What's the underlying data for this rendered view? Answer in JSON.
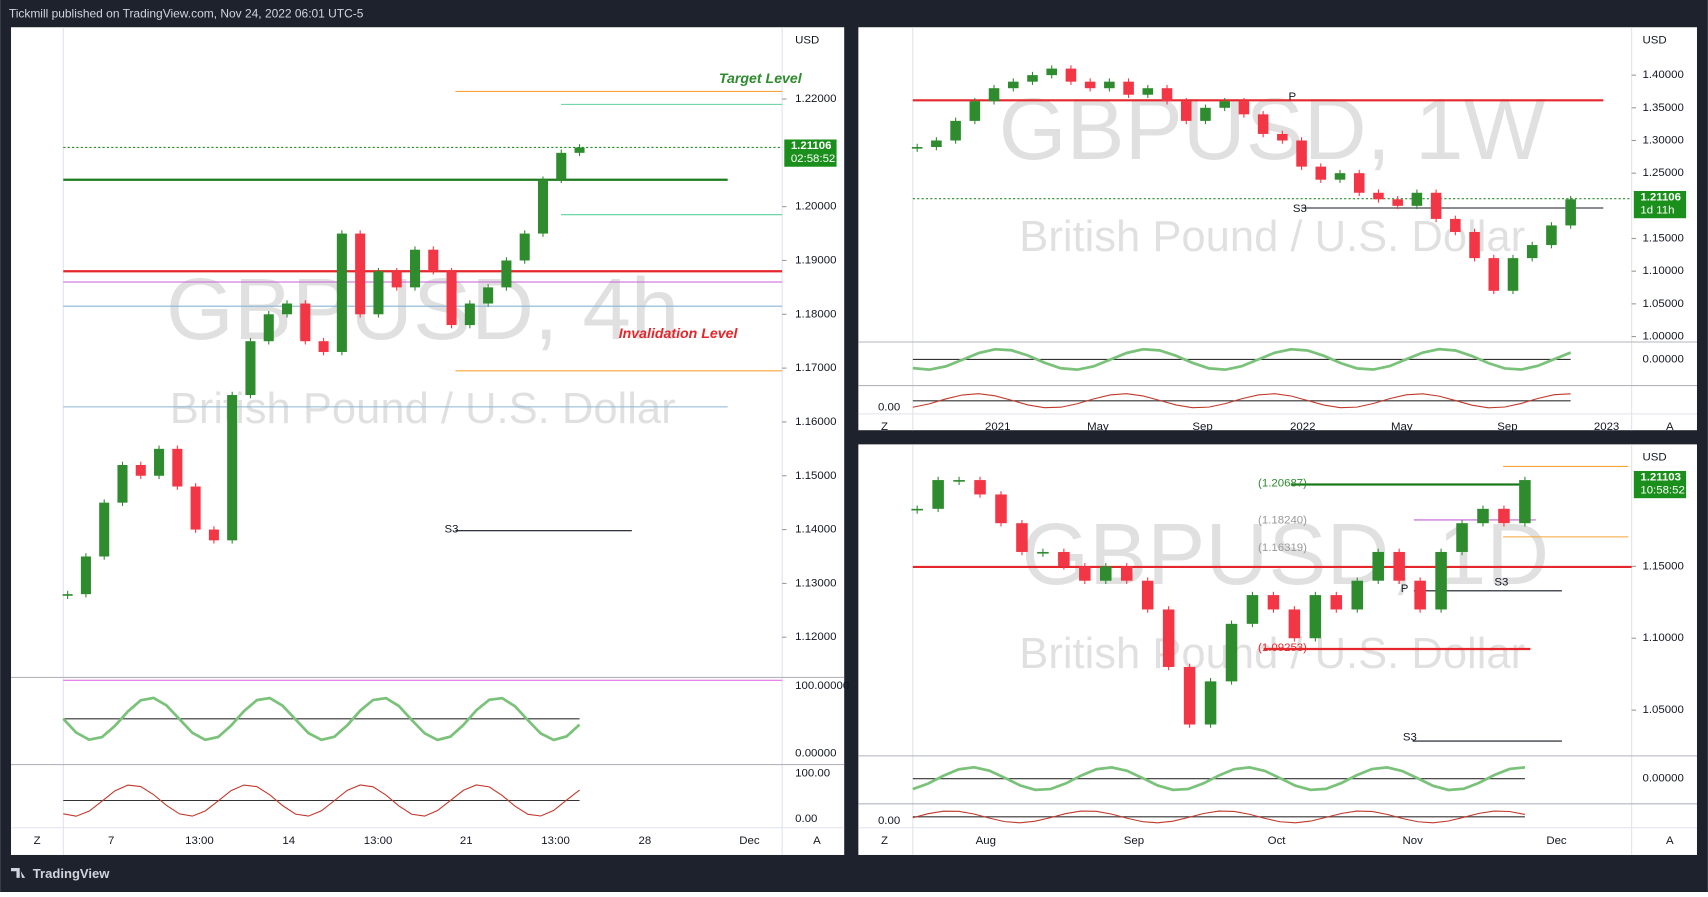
{
  "header": {
    "text": "Tickmill published on TradingView.com, Nov 24, 2022 06:01 UTC-5"
  },
  "footer": {
    "brand": "TradingView"
  },
  "controls": {
    "left": "Z",
    "right": "A"
  },
  "chart_data": [
    {
      "type": "candlestick",
      "title": "GBPUSD, 4h",
      "subtitle": "British Pound / U.S. Dollar",
      "currency": "USD",
      "up_color": "#2e8b2e",
      "down_color": "#f23645",
      "x_labels": [
        "7",
        "13:00",
        "14",
        "13:00",
        "21",
        "13:00",
        "28",
        "Dec"
      ],
      "values": [
        1.128,
        1.135,
        1.145,
        1.152,
        1.15,
        1.155,
        1.148,
        1.14,
        1.138,
        1.165,
        1.175,
        1.18,
        1.182,
        1.175,
        1.173,
        1.195,
        1.18,
        1.188,
        1.185,
        1.192,
        1.188,
        1.178,
        1.182,
        1.185,
        1.19,
        1.195,
        1.205,
        1.21,
        1.211
      ],
      "ylim": [
        1.11293,
        1.23273
      ],
      "yticks": [
        {
          "value": 1.22,
          "label": "1.22000"
        },
        {
          "value": 1.2,
          "label": "1.20000"
        },
        {
          "value": 1.19,
          "label": "1.19000"
        },
        {
          "value": 1.18,
          "label": "1.18000"
        },
        {
          "value": 1.17,
          "label": "1.17000"
        },
        {
          "value": 1.16,
          "label": "1.16000"
        },
        {
          "value": 1.15,
          "label": "1.15000"
        },
        {
          "value": 1.14,
          "label": "1.14000"
        },
        {
          "value": 1.13,
          "label": "1.13000"
        },
        {
          "value": 1.12,
          "label": "1.12000"
        }
      ],
      "levels": [
        {
          "value": 1.2214,
          "color": "#f7a43b"
        },
        {
          "value": 1.219,
          "color": "#5dd39e"
        },
        {
          "value": 1.211,
          "color": "#2e8b2e"
        },
        {
          "value": 1.205,
          "color": "#1b7a1b"
        },
        {
          "value": 1.1985,
          "color": "#5dd39e"
        },
        {
          "value": 1.188,
          "color": "#e5262b"
        },
        {
          "value": 1.186,
          "color": "#c45fd6"
        },
        {
          "value": 1.1815,
          "color": "#8ab4d8"
        },
        {
          "value": 1.1695,
          "color": "#f7a43b"
        },
        {
          "value": 1.1628,
          "color": "#8ab4d8"
        },
        {
          "value": 1.1398,
          "color": "#131722"
        },
        {
          "value": 1.112,
          "color": "#e05ce8"
        }
      ],
      "annotations": [
        "Target Level",
        "Invalidation Level",
        "S3"
      ],
      "last_price": 1.21106,
      "countdown": "02:58:52",
      "oscillator_labels": [
        "100.00000",
        "0.00000",
        "100.00",
        "0.00"
      ]
    },
    {
      "type": "candlestick",
      "title": "GBPUSD, 1W",
      "subtitle": "British Pound / U.S. Dollar",
      "currency": "USD",
      "up_color": "#2e8b2e",
      "down_color": "#f23645",
      "x_labels": [
        "2021",
        "May",
        "Sep",
        "2022",
        "May",
        "Sep",
        "2023"
      ],
      "values": [
        1.29,
        1.3,
        1.33,
        1.36,
        1.38,
        1.39,
        1.4,
        1.41,
        1.39,
        1.38,
        1.39,
        1.37,
        1.38,
        1.36,
        1.33,
        1.35,
        1.36,
        1.34,
        1.31,
        1.3,
        1.26,
        1.24,
        1.25,
        1.22,
        1.21,
        1.2,
        1.22,
        1.18,
        1.16,
        1.12,
        1.07,
        1.12,
        1.14,
        1.17,
        1.21
      ],
      "ylim": [
        0.995,
        1.4683
      ],
      "yticks": [
        {
          "value": 1.4,
          "label": "1.40000"
        },
        {
          "value": 1.35,
          "label": "1.35000"
        },
        {
          "value": 1.3,
          "label": "1.30000"
        },
        {
          "value": 1.25,
          "label": "1.25000"
        },
        {
          "value": 1.15,
          "label": "1.15000"
        },
        {
          "value": 1.1,
          "label": "1.10000"
        },
        {
          "value": 1.05,
          "label": "1.05000"
        },
        {
          "value": 1.0,
          "label": "1.00000"
        }
      ],
      "levels": [
        {
          "value": 1.3615,
          "color": "#e5262b"
        },
        {
          "value": 1.211,
          "color": "#2e8b2e"
        },
        {
          "value": 1.1967,
          "color": "#131722"
        }
      ],
      "annotations": [
        "P",
        "S3"
      ],
      "last_price": 1.21106,
      "countdown": "1d 11h",
      "oscillator_labels": [
        "0.00000",
        "0.00"
      ]
    },
    {
      "type": "candlestick",
      "title": "GBPUSD, 1D",
      "subtitle": "British Pound / U.S. Dollar",
      "currency": "USD",
      "up_color": "#2e8b2e",
      "down_color": "#f23645",
      "x_labels": [
        "Aug",
        "Sep",
        "Oct",
        "Nov",
        "Dec"
      ],
      "values": [
        1.19,
        1.21,
        1.21,
        1.2,
        1.18,
        1.16,
        1.16,
        1.15,
        1.14,
        1.15,
        1.14,
        1.12,
        1.08,
        1.04,
        1.07,
        1.11,
        1.13,
        1.12,
        1.1,
        1.13,
        1.12,
        1.14,
        1.16,
        1.14,
        1.12,
        1.16,
        1.18,
        1.19,
        1.18,
        1.21
      ],
      "ylim": [
        1.0197,
        1.2318
      ],
      "yticks": [
        {
          "value": 1.15,
          "label": "1.15000"
        },
        {
          "value": 1.1,
          "label": "1.10000"
        },
        {
          "value": 1.05,
          "label": "1.05000"
        }
      ],
      "levels": [
        {
          "value": 1.2195,
          "color": "#f7a43b"
        },
        {
          "value": 1.2069,
          "color": "#1b7a1b"
        },
        {
          "value": 1.1823,
          "color": "#c45fd6"
        },
        {
          "value": 1.1705,
          "color": "#f7a43b"
        },
        {
          "value": 1.1496,
          "color": "#e5262b"
        },
        {
          "value": 1.133,
          "color": "#131722"
        },
        {
          "value": 1.0925,
          "color": "#e5262b"
        },
        {
          "value": 1.0285,
          "color": "#131722"
        }
      ],
      "annotations": [
        "(1.20687)",
        "(1.18240)",
        "(1.16319)",
        "(1.09253)",
        "P",
        "S3",
        "S3"
      ],
      "last_price": 1.21103,
      "countdown": "10:58:52",
      "oscillator_labels": [
        "0.00000",
        "0.00"
      ]
    }
  ]
}
